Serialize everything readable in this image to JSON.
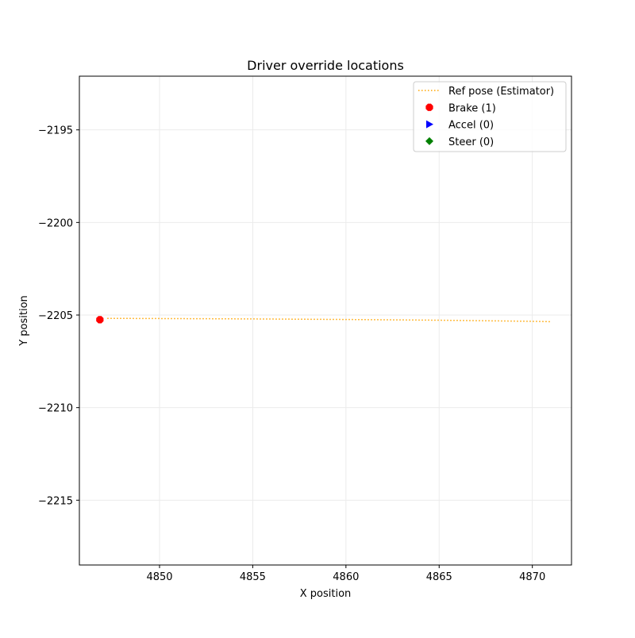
{
  "chart_data": {
    "type": "scatter",
    "title": "Driver override locations",
    "xlabel": "X position",
    "ylabel": "Y position",
    "xlim": [
      4845.7,
      4872.1
    ],
    "ylim": [
      -2218.5,
      -2192.1
    ],
    "xticks": [
      4850,
      4855,
      4860,
      4865,
      4870
    ],
    "yticks": [
      -2195,
      -2200,
      -2205,
      -2210,
      -2215
    ],
    "xtick_labels": [
      "4850",
      "4855",
      "4860",
      "4865",
      "4870"
    ],
    "ytick_labels": [
      "−2195",
      "−2200",
      "−2205",
      "−2210",
      "−2215"
    ],
    "grid": true,
    "legend_position": "top-right",
    "series": [
      {
        "name": "Ref pose (Estimator)",
        "kind": "line",
        "style": "dotted",
        "color": "#ffa500",
        "x": [
          4847.2,
          4850,
          4855,
          4860,
          4865,
          4870,
          4871.0
        ],
        "y": [
          -2205.18,
          -2205.19,
          -2205.21,
          -2205.24,
          -2205.28,
          -2205.34,
          -2205.36
        ]
      },
      {
        "name": "Brake (1)",
        "kind": "marker",
        "marker": "octagon",
        "color": "#ff0000",
        "x": [
          4846.8
        ],
        "y": [
          -2205.25
        ]
      },
      {
        "name": "Accel (0)",
        "kind": "marker",
        "marker": "triangle-right",
        "color": "#0000ff",
        "x": [],
        "y": []
      },
      {
        "name": "Steer (0)",
        "kind": "marker",
        "marker": "diamond",
        "color": "#008000",
        "x": [],
        "y": []
      }
    ]
  }
}
